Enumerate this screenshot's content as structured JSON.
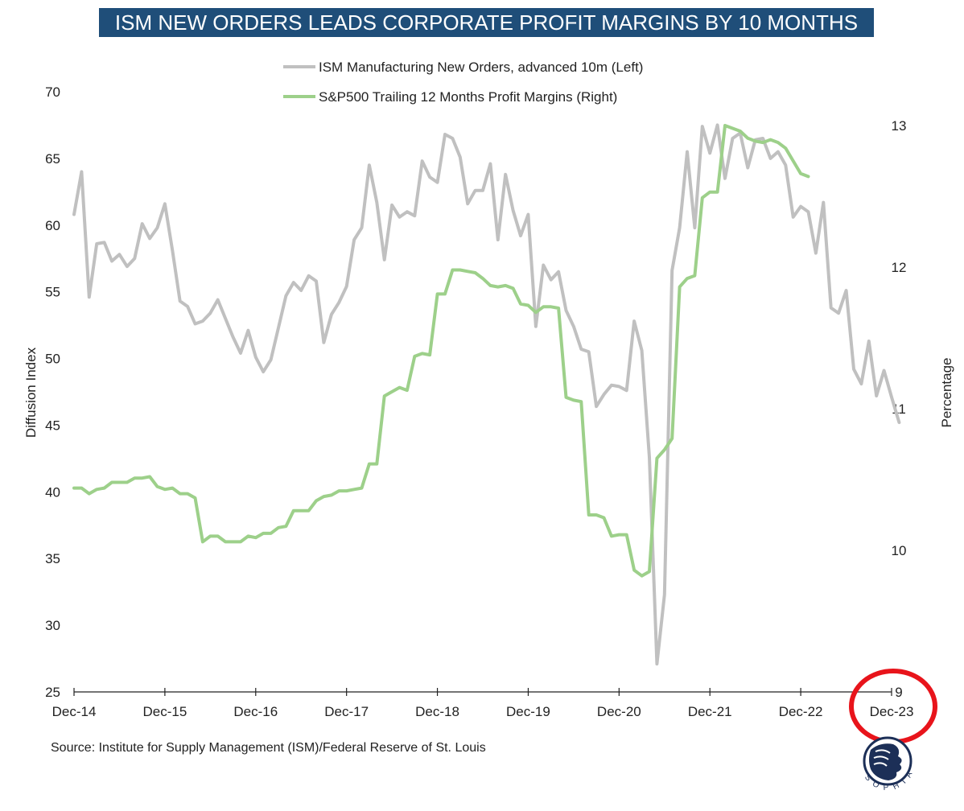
{
  "chart_data": {
    "type": "line",
    "title": "ISM NEW ORDERS LEADS CORPORATE PROFIT MARGINS BY 10 MONTHS",
    "source": "Source: Institute for Supply Management (ISM)/Federal Reserve of St. Louis",
    "ylabel_left": "Diffusion Index",
    "ylabel_right": "Percentage",
    "ylim_left": [
      25,
      70
    ],
    "ylim_right": [
      9,
      13
    ],
    "yticks_left": [
      "70",
      "65",
      "60",
      "55",
      "50",
      "45",
      "40",
      "35",
      "30",
      "25"
    ],
    "yticks_right": [
      "13",
      "12",
      "11",
      "10",
      "9"
    ],
    "x_tick_labels": [
      "Dec-14",
      "Dec-15",
      "Dec-16",
      "Dec-17",
      "Dec-18",
      "Dec-19",
      "Dec-20",
      "Dec-21",
      "Dec-22",
      "Dec-23"
    ],
    "x_start": "2014-12",
    "legend_placement": "top-center",
    "grid": false,
    "series": [
      {
        "name": "ISM Manufacturing New Orders, advanced 10m (Left)",
        "axis": "left",
        "color": "#c0c0c0",
        "values": [
          60.8,
          64.0,
          54.6,
          58.6,
          58.7,
          57.3,
          57.8,
          56.9,
          57.5,
          60.1,
          59.0,
          59.8,
          61.6,
          58.1,
          54.3,
          53.9,
          52.6,
          52.8,
          53.4,
          54.4,
          53.0,
          51.6,
          50.4,
          52.1,
          50.1,
          49.0,
          49.9,
          52.3,
          54.7,
          55.7,
          55.1,
          56.2,
          55.8,
          51.2,
          53.3,
          54.2,
          55.4,
          58.9,
          59.8,
          64.5,
          61.7,
          57.4,
          61.5,
          60.6,
          61.0,
          60.7,
          64.8,
          63.6,
          63.2,
          66.8,
          66.5,
          65.1,
          61.6,
          62.6,
          62.6,
          64.6,
          58.9,
          63.8,
          61.1,
          59.2,
          60.8,
          52.4,
          57.0,
          55.9,
          56.5,
          53.6,
          52.4,
          50.7,
          50.5,
          46.4,
          47.3,
          48.0,
          47.9,
          47.6,
          52.8,
          50.6,
          42.6,
          27.1,
          32.3,
          56.6,
          59.8,
          65.5,
          59.8,
          67.4,
          65.4,
          67.5,
          63.5,
          66.5,
          66.9,
          64.3,
          66.4,
          66.5,
          65.0,
          65.5,
          64.5,
          60.6,
          61.4,
          61.0,
          57.9,
          61.7,
          53.8,
          53.4,
          55.1,
          49.2,
          48.1,
          51.3,
          47.2,
          49.1,
          47.1,
          45.2
        ]
      },
      {
        "name": "S&P500 Trailing 12 Months Profit Margins (Right)",
        "axis": "right",
        "color": "#9dd08a",
        "values": [
          10.44,
          10.44,
          10.4,
          10.43,
          10.44,
          10.48,
          10.48,
          10.48,
          10.51,
          10.51,
          10.52,
          10.45,
          10.43,
          10.44,
          10.4,
          10.4,
          10.37,
          10.06,
          10.1,
          10.1,
          10.06,
          10.06,
          10.06,
          10.1,
          10.09,
          10.12,
          10.12,
          10.16,
          10.17,
          10.28,
          10.28,
          10.28,
          10.35,
          10.38,
          10.39,
          10.42,
          10.42,
          10.43,
          10.44,
          10.61,
          10.61,
          11.09,
          11.12,
          11.15,
          11.13,
          11.37,
          11.39,
          11.38,
          11.81,
          11.81,
          11.98,
          11.98,
          11.97,
          11.96,
          11.92,
          11.87,
          11.86,
          11.87,
          11.85,
          11.74,
          11.73,
          11.68,
          11.72,
          11.72,
          11.71,
          11.08,
          11.06,
          11.05,
          10.25,
          10.25,
          10.23,
          10.1,
          10.11,
          10.11,
          9.86,
          9.82,
          9.85,
          10.65,
          10.71,
          10.79,
          11.86,
          11.92,
          11.94,
          12.49,
          12.53,
          12.53,
          13.0,
          12.98,
          12.96,
          12.91,
          12.89,
          12.88,
          12.9,
          12.88,
          12.84,
          12.75,
          12.66,
          12.64
        ]
      }
    ]
  }
}
